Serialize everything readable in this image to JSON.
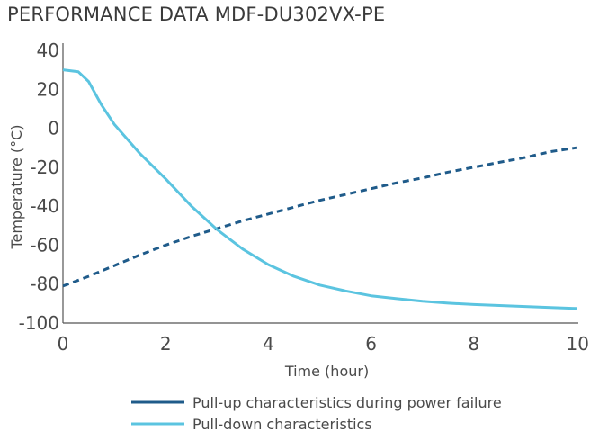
{
  "title": "PERFORMANCE DATA MDF-DU302VX-PE",
  "chart_data": {
    "type": "line",
    "title": "PERFORMANCE DATA MDF-DU302VX-PE",
    "xlabel": "Time (hour)",
    "ylabel": "Temperature (°C)",
    "xlim": [
      0,
      10
    ],
    "ylim": [
      -100,
      40
    ],
    "xticks": [
      "0",
      "2",
      "4",
      "6",
      "8",
      "10"
    ],
    "yticks": [
      "40",
      "20",
      "0",
      "-20",
      "-40",
      "-60",
      "-80",
      "-100"
    ],
    "grid": false,
    "legend_position": "bottom",
    "series": [
      {
        "name": "Pull-up characteristics during power failure",
        "color": "#1f5b8a",
        "style": "dashed",
        "x": [
          0,
          0.5,
          1,
          1.5,
          2,
          2.5,
          3,
          3.5,
          4,
          4.5,
          5,
          5.5,
          6,
          6.5,
          7,
          7.5,
          8,
          8.5,
          9,
          9.5,
          10
        ],
        "y": [
          -81,
          -76,
          -70.5,
          -65,
          -60,
          -55.5,
          -51.5,
          -47.5,
          -44,
          -40.5,
          -37,
          -34,
          -31,
          -28,
          -25.5,
          -22.5,
          -20,
          -17.5,
          -15,
          -12,
          -10
        ]
      },
      {
        "name": "Pull-down characteristics",
        "color": "#5bc4e0",
        "style": "solid",
        "x": [
          0,
          0.3,
          0.5,
          0.75,
          1,
          1.5,
          2,
          2.5,
          3,
          3.5,
          4,
          4.5,
          5,
          5.5,
          6,
          6.5,
          7,
          7.5,
          8,
          8.5,
          9,
          9.5,
          10
        ],
        "y": [
          30,
          29,
          24,
          12,
          2,
          -13,
          -26,
          -40,
          -52,
          -62,
          -70,
          -76,
          -80.5,
          -83.5,
          -86,
          -87.5,
          -88.8,
          -89.8,
          -90.5,
          -91,
          -91.5,
          -92,
          -92.5
        ]
      }
    ]
  }
}
